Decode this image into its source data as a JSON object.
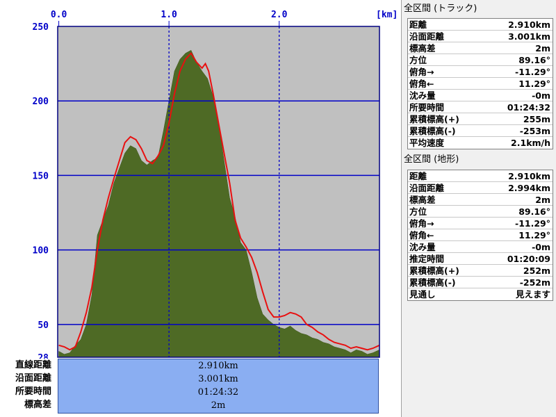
{
  "chart_data": {
    "type": "area",
    "x_unit_label": "[km]",
    "x_ticks": [
      "0.0",
      "1.0",
      "2.0"
    ],
    "y_ticks": [
      "250",
      "200",
      "150",
      "100",
      "50",
      "28"
    ],
    "xlim": [
      -0.01,
      2.91
    ],
    "ylim": [
      28,
      250
    ],
    "grid": true,
    "series": [
      {
        "kind": "terrain-area",
        "color": "#4e6a25",
        "x": [
          0.0,
          0.05,
          0.1,
          0.15,
          0.2,
          0.25,
          0.3,
          0.35,
          0.4,
          0.45,
          0.5,
          0.55,
          0.6,
          0.65,
          0.7,
          0.75,
          0.8,
          0.85,
          0.9,
          0.95,
          1.0,
          1.05,
          1.1,
          1.15,
          1.2,
          1.25,
          1.3,
          1.32,
          1.35,
          1.4,
          1.45,
          1.5,
          1.55,
          1.6,
          1.65,
          1.7,
          1.75,
          1.8,
          1.85,
          1.9,
          1.95,
          2.0,
          2.05,
          2.1,
          2.15,
          2.2,
          2.25,
          2.3,
          2.35,
          2.4,
          2.45,
          2.5,
          2.55,
          2.6,
          2.65,
          2.7,
          2.75,
          2.8,
          2.85,
          2.91
        ],
        "y": [
          32,
          30,
          31,
          36,
          40,
          50,
          70,
          110,
          120,
          130,
          145,
          155,
          165,
          170,
          168,
          160,
          157,
          160,
          162,
          180,
          200,
          220,
          228,
          232,
          234,
          226,
          220,
          218,
          215,
          203,
          185,
          160,
          135,
          122,
          105,
          100,
          85,
          68,
          57,
          53,
          50,
          48,
          47,
          49,
          46,
          44,
          43,
          41,
          40,
          38,
          37,
          35,
          34,
          33,
          31,
          33,
          32,
          30,
          31,
          33
        ]
      },
      {
        "kind": "track-line",
        "color": "#e81010",
        "x": [
          0.0,
          0.05,
          0.1,
          0.15,
          0.2,
          0.25,
          0.3,
          0.35,
          0.4,
          0.45,
          0.5,
          0.55,
          0.6,
          0.65,
          0.7,
          0.75,
          0.8,
          0.85,
          0.9,
          0.95,
          1.0,
          1.05,
          1.1,
          1.15,
          1.2,
          1.25,
          1.3,
          1.33,
          1.36,
          1.4,
          1.45,
          1.5,
          1.55,
          1.6,
          1.65,
          1.7,
          1.75,
          1.8,
          1.85,
          1.9,
          1.95,
          2.0,
          2.05,
          2.1,
          2.15,
          2.2,
          2.25,
          2.3,
          2.35,
          2.4,
          2.45,
          2.5,
          2.55,
          2.6,
          2.65,
          2.7,
          2.75,
          2.8,
          2.85,
          2.91
        ],
        "y": [
          36,
          35,
          33,
          35,
          45,
          58,
          75,
          100,
          120,
          135,
          148,
          160,
          172,
          176,
          174,
          168,
          160,
          158,
          163,
          170,
          185,
          205,
          220,
          228,
          232,
          226,
          222,
          225,
          220,
          205,
          185,
          165,
          145,
          120,
          108,
          102,
          95,
          85,
          72,
          60,
          55,
          55,
          56,
          58,
          57,
          55,
          50,
          48,
          45,
          43,
          40,
          38,
          37,
          36,
          34,
          35,
          34,
          33,
          34,
          36
        ]
      }
    ]
  },
  "summary": {
    "labels": [
      "直線距離",
      "沿面距離",
      "所要時間",
      "標高差"
    ],
    "values": [
      "2.910km",
      "3.001km",
      "01:24:32",
      "2m"
    ]
  },
  "track_panel": {
    "title": "全区間 (トラック)",
    "rows": [
      {
        "label": "距離",
        "value": "2.910km"
      },
      {
        "label": "沿面距離",
        "value": "3.001km"
      },
      {
        "label": "標高差",
        "value": "2m"
      },
      {
        "label": "方位",
        "value": "89.16°"
      },
      {
        "label": "俯角→",
        "value": "-11.29°"
      },
      {
        "label": "俯角←",
        "value": "11.29°"
      },
      {
        "label": "沈み量",
        "value": "-0m"
      },
      {
        "label": "所要時間",
        "value": "01:24:32"
      },
      {
        "label": "累積標高(+)",
        "value": "255m"
      },
      {
        "label": "累積標高(-)",
        "value": "-253m"
      },
      {
        "label": "平均速度",
        "value": "2.1km/h"
      }
    ]
  },
  "terrain_panel": {
    "title": "全区間 (地形)",
    "rows": [
      {
        "label": "距離",
        "value": "2.910km"
      },
      {
        "label": "沿面距離",
        "value": "2.994km"
      },
      {
        "label": "標高差",
        "value": "2m"
      },
      {
        "label": "方位",
        "value": "89.16°"
      },
      {
        "label": "俯角→",
        "value": "-11.29°"
      },
      {
        "label": "俯角←",
        "value": "11.29°"
      },
      {
        "label": "沈み量",
        "value": "-0m"
      },
      {
        "label": "推定時間",
        "value": "01:20:09"
      },
      {
        "label": "累積標高(+)",
        "value": "252m"
      },
      {
        "label": "累積標高(-)",
        "value": "-252m"
      },
      {
        "label": "見通し",
        "value": "見えます"
      }
    ]
  }
}
